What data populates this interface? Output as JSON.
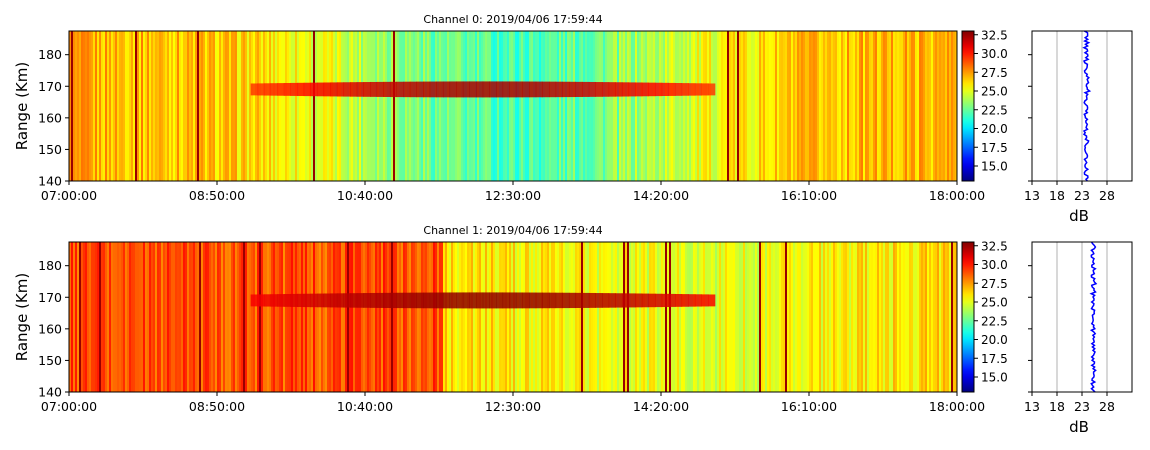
{
  "colors": {
    "colormap": "jet",
    "profile_line": "#0000ff",
    "grid": "#b0b0b0"
  },
  "chart_data": [
    {
      "type": "heatmap",
      "title": "Channel 0: 2019/04/06 17:59:44",
      "ylabel": "Range (Km)",
      "xlabel": "",
      "xlim": [
        "07:00:00",
        "18:00:00"
      ],
      "ylim": [
        140,
        187.5
      ],
      "xticks": [
        "07:00:00",
        "08:50:00",
        "10:40:00",
        "12:30:00",
        "14:20:00",
        "16:10:00",
        "18:00:00"
      ],
      "yticks": [
        140,
        150,
        160,
        170,
        180
      ],
      "colorbar": {
        "range": [
          13,
          33
        ],
        "ticks": [
          "15.0",
          "17.5",
          "20.0",
          "22.5",
          "25.0",
          "27.5",
          "30.0",
          "32.5"
        ]
      },
      "features": {
        "background_level_db": 27,
        "green_region_db": 22,
        "layer_range_km": 169,
        "layer_start": "09:15:00",
        "layer_end": "15:00:00",
        "layer_peak_db": 31
      }
    },
    {
      "type": "line",
      "title": "",
      "xlabel": "dB",
      "ylabel": "",
      "xlim": [
        13,
        33
      ],
      "ylim": [
        140,
        187.5
      ],
      "xticks": [
        13,
        18,
        23,
        28
      ],
      "grid": true,
      "series": [
        {
          "mean_db": 23.8,
          "spread_db": 0.4
        }
      ]
    },
    {
      "type": "heatmap",
      "title": "Channel 1: 2019/04/06 17:59:44",
      "ylabel": "Range (Km)",
      "xlabel": "",
      "xlim": [
        "07:00:00",
        "18:00:00"
      ],
      "ylim": [
        140,
        187.5
      ],
      "xticks": [
        "07:00:00",
        "08:50:00",
        "10:40:00",
        "12:30:00",
        "14:20:00",
        "16:10:00",
        "18:00:00"
      ],
      "yticks": [
        140,
        150,
        160,
        170,
        180
      ],
      "colorbar": {
        "range": [
          13,
          33
        ],
        "ticks": [
          "15.0",
          "17.5",
          "20.0",
          "22.5",
          "25.0",
          "27.5",
          "30.0",
          "32.5"
        ]
      },
      "features": {
        "background_level_db": 28.5,
        "green_region_db": 25,
        "layer_range_km": 169,
        "layer_start": "09:15:00",
        "layer_end": "15:00:00",
        "layer_peak_db": 31.5
      }
    },
    {
      "type": "line",
      "title": "",
      "xlabel": "dB",
      "ylabel": "",
      "xlim": [
        13,
        33
      ],
      "ylim": [
        140,
        187.5
      ],
      "xticks": [
        13,
        18,
        23,
        28
      ],
      "grid": true,
      "series": [
        {
          "mean_db": 25.2,
          "spread_db": 0.35
        }
      ]
    }
  ]
}
